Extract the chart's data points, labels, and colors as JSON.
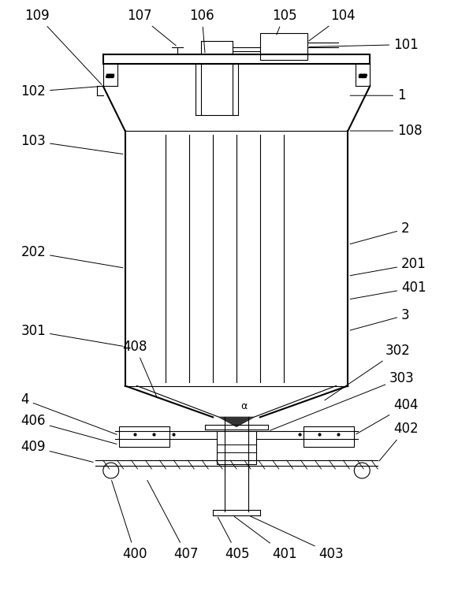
{
  "bg_color": "#ffffff",
  "line_color": "#000000",
  "label_color": "#000000",
  "fig_width": 6.0,
  "fig_height": 7.74,
  "label_fontsize": 12
}
